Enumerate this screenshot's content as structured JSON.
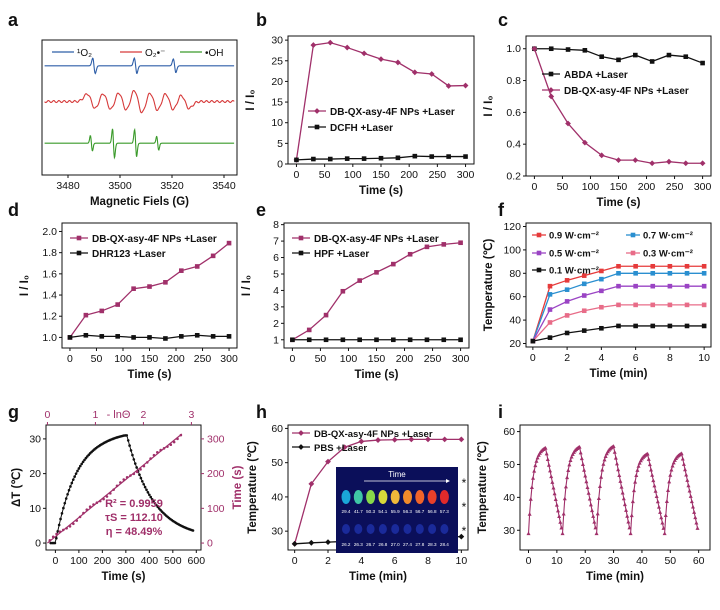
{
  "chart_data": [
    {
      "id": "a",
      "type": "line",
      "panel_label": "a",
      "xlabel": "Magnetic Fiels (G)",
      "ylabel": "",
      "xlim": [
        3470,
        3545
      ],
      "ylim": [
        -2.5,
        4.3
      ],
      "xticks": [
        3480,
        3500,
        3520,
        3540
      ],
      "yticks": [],
      "legend": [
        {
          "name": "¹O₂",
          "color": "#2f5fa8"
        },
        {
          "name": "O₂•⁻",
          "color": "#d63a3a"
        },
        {
          "name": "•OH",
          "color": "#3a9a2a"
        }
      ],
      "legend_position": "top",
      "series": [
        {
          "name": "¹O₂",
          "color": "#2f5fa8",
          "style": "epr",
          "offset": 3.0,
          "kind": "triplet"
        },
        {
          "name": "O₂•⁻",
          "color": "#d63a3a",
          "style": "epr",
          "offset": 1.2,
          "kind": "superoxide"
        },
        {
          "name": "•OH",
          "color": "#3a9a2a",
          "style": "epr",
          "offset": -0.9,
          "kind": "hydroxyl"
        }
      ]
    },
    {
      "id": "b",
      "type": "line",
      "panel_label": "b",
      "xlabel": "Time (s)",
      "ylabel": "I / I₀",
      "xlim": [
        -15,
        315
      ],
      "ylim": [
        0,
        31
      ],
      "xticks": [
        0,
        50,
        100,
        150,
        200,
        250,
        300
      ],
      "yticks": [
        0,
        5,
        10,
        15,
        20,
        25,
        30
      ],
      "legend_position": "center-right",
      "series": [
        {
          "name": "DB-QX-asy-4F NPs +Laser",
          "color": "#a0306a",
          "marker": "diamond",
          "x": [
            0,
            30,
            60,
            90,
            120,
            150,
            180,
            210,
            240,
            270,
            300
          ],
          "y": [
            1,
            28.8,
            29.4,
            28.2,
            26.8,
            25.4,
            24.6,
            22.2,
            21.8,
            18.9,
            19.0
          ]
        },
        {
          "name": "DCFH +Laser",
          "color": "#111111",
          "marker": "square",
          "x": [
            0,
            30,
            60,
            90,
            120,
            150,
            180,
            210,
            240,
            270,
            300
          ],
          "y": [
            1,
            1.2,
            1.2,
            1.3,
            1.3,
            1.4,
            1.5,
            1.9,
            1.8,
            1.8,
            1.8
          ]
        }
      ]
    },
    {
      "id": "c",
      "type": "line",
      "panel_label": "c",
      "xlabel": "Time (s)",
      "ylabel": "I / I₀",
      "xlim": [
        -15,
        315
      ],
      "ylim": [
        0.2,
        1.08
      ],
      "xticks": [
        0,
        50,
        100,
        150,
        200,
        250,
        300
      ],
      "yticks": [
        0.2,
        0.4,
        0.6,
        0.8,
        1.0
      ],
      "legend_position": "center-right",
      "series": [
        {
          "name": "ABDA +Laser",
          "color": "#111111",
          "marker": "square",
          "x": [
            0,
            30,
            60,
            90,
            120,
            150,
            180,
            210,
            240,
            270,
            300
          ],
          "y": [
            1.0,
            1.0,
            0.995,
            0.99,
            0.95,
            0.93,
            0.96,
            0.92,
            0.96,
            0.95,
            0.91
          ]
        },
        {
          "name": "DB-QX-asy-4F NPs +Laser",
          "color": "#a0306a",
          "marker": "diamond",
          "x": [
            0,
            30,
            60,
            90,
            120,
            150,
            180,
            210,
            240,
            270,
            300
          ],
          "y": [
            1.0,
            0.7,
            0.53,
            0.41,
            0.33,
            0.3,
            0.3,
            0.28,
            0.29,
            0.28,
            0.28
          ]
        }
      ]
    },
    {
      "id": "d",
      "type": "line",
      "panel_label": "d",
      "xlabel": "Time (s)",
      "ylabel": "I / I₀",
      "xlim": [
        -15,
        315
      ],
      "ylim": [
        0.9,
        2.08
      ],
      "xticks": [
        0,
        50,
        100,
        150,
        200,
        250,
        300
      ],
      "yticks": [
        1.0,
        1.2,
        1.4,
        1.6,
        1.8,
        2.0
      ],
      "legend_position": "top-left",
      "series": [
        {
          "name": "DB-QX-asy-4F NPs +Laser",
          "color": "#a0306a",
          "marker": "square",
          "x": [
            0,
            30,
            60,
            90,
            120,
            150,
            180,
            210,
            240,
            270,
            300
          ],
          "y": [
            1.0,
            1.21,
            1.25,
            1.31,
            1.46,
            1.48,
            1.52,
            1.63,
            1.67,
            1.77,
            1.89
          ]
        },
        {
          "name": "DHR123 +Laser",
          "color": "#111111",
          "marker": "square",
          "x": [
            0,
            30,
            60,
            90,
            120,
            150,
            180,
            210,
            240,
            270,
            300
          ],
          "y": [
            1.0,
            1.02,
            1.01,
            1.01,
            1.0,
            1.0,
            0.99,
            1.01,
            1.02,
            1.01,
            1.01
          ]
        }
      ]
    },
    {
      "id": "e",
      "type": "line",
      "panel_label": "e",
      "xlabel": "Time (s)",
      "ylabel": "I / I₀",
      "xlim": [
        -15,
        315
      ],
      "ylim": [
        0.5,
        8.1
      ],
      "xticks": [
        0,
        50,
        100,
        150,
        200,
        250,
        300
      ],
      "yticks": [
        1,
        2,
        3,
        4,
        5,
        6,
        7,
        8
      ],
      "legend_position": "top-left",
      "series": [
        {
          "name": "DB-QX-asy-4F NPs +Laser",
          "color": "#a0306a",
          "marker": "square",
          "x": [
            0,
            30,
            60,
            90,
            120,
            150,
            180,
            210,
            240,
            270,
            300
          ],
          "y": [
            1.0,
            1.6,
            2.5,
            3.95,
            4.6,
            5.1,
            5.6,
            6.2,
            6.65,
            6.8,
            6.9
          ]
        },
        {
          "name": "HPF +Laser",
          "color": "#111111",
          "marker": "square",
          "x": [
            0,
            30,
            60,
            90,
            120,
            150,
            180,
            210,
            240,
            270,
            300
          ],
          "y": [
            1.0,
            1.0,
            1.0,
            1.0,
            1.0,
            1.0,
            1.0,
            1.0,
            1.0,
            1.0,
            1.0
          ]
        }
      ]
    },
    {
      "id": "f",
      "type": "line",
      "panel_label": "f",
      "xlabel": "Time (min)",
      "ylabel": "Temperature (℃)",
      "xlim": [
        -0.4,
        10.4
      ],
      "ylim": [
        17,
        123
      ],
      "xticks": [
        0,
        2,
        4,
        6,
        8,
        10
      ],
      "yticks": [
        20,
        40,
        60,
        80,
        100,
        120
      ],
      "legend_position": "top",
      "series": [
        {
          "name": "0.9 W·cm⁻²",
          "color": "#e63b3b",
          "marker": "square",
          "x": [
            0,
            1,
            2,
            3,
            4,
            5,
            6,
            7,
            8,
            9,
            10
          ],
          "y": [
            22,
            69,
            74,
            78,
            82,
            86,
            86,
            86,
            86,
            86,
            86
          ]
        },
        {
          "name": "0.7 W·cm⁻²",
          "color": "#2a8fd0",
          "marker": "square",
          "x": [
            0,
            1,
            2,
            3,
            4,
            5,
            6,
            7,
            8,
            9,
            10
          ],
          "y": [
            22,
            62,
            66,
            71,
            75,
            80,
            80,
            80,
            80,
            80,
            80
          ]
        },
        {
          "name": "0.5 W·cm⁻²",
          "color": "#9a44c4",
          "marker": "square",
          "x": [
            0,
            1,
            2,
            3,
            4,
            5,
            6,
            7,
            8,
            9,
            10
          ],
          "y": [
            22,
            49,
            56,
            61,
            65,
            69,
            69,
            69,
            69,
            69,
            69
          ]
        },
        {
          "name": "0.3 W·cm⁻²",
          "color": "#e86c88",
          "marker": "square",
          "x": [
            0,
            1,
            2,
            3,
            4,
            5,
            6,
            7,
            8,
            9,
            10
          ],
          "y": [
            22,
            38,
            44,
            48,
            51,
            53,
            53,
            53,
            53,
            53,
            53
          ]
        },
        {
          "name": "0.1 W·cm⁻²",
          "color": "#111111",
          "marker": "square",
          "x": [
            0,
            1,
            2,
            3,
            4,
            5,
            6,
            7,
            8,
            9,
            10
          ],
          "y": [
            22,
            25,
            29,
            31,
            33,
            35,
            35,
            35,
            35,
            35,
            35
          ]
        }
      ]
    },
    {
      "id": "g",
      "type": "scatter",
      "panel_label": "g",
      "xlabel": "Time (s)",
      "ylabel": "ΔT (℃)",
      "x2label": "- lnΘ",
      "y2label": "Time (s)",
      "xlim": [
        -40,
        620
      ],
      "ylim": [
        -2,
        34
      ],
      "x2lim": [
        -0.03,
        3.2
      ],
      "y2lim": [
        -20,
        340
      ],
      "xticks": [
        0,
        100,
        200,
        300,
        400,
        500,
        600
      ],
      "yticks": [
        0,
        10,
        20,
        30
      ],
      "x2ticks": [
        0,
        1,
        2,
        3
      ],
      "y2ticks": [
        0,
        100,
        200,
        300
      ],
      "annotations": [
        "R² = 0.9959",
        "τS = 112.10",
        "η = 48.49%"
      ],
      "series": [
        {
          "name": "",
          "color": "#111111",
          "marker": "dot",
          "style": "heating-cooling",
          "heat": {
            "t_start": 0,
            "t_end": 300,
            "dT_max": 30.5,
            "tau": 90
          },
          "cool": {
            "t_start": 300,
            "t_end": 600,
            "tau": 112.1
          }
        },
        {
          "name": "",
          "color": "#a0306a",
          "marker": "dot",
          "style": "fit",
          "x2": [
            0.0,
            0.5,
            1.0,
            1.5,
            2.0,
            2.5,
            2.8
          ],
          "y2": [
            0,
            56,
            112,
            168,
            224,
            280,
            314
          ]
        }
      ]
    },
    {
      "id": "h",
      "type": "line",
      "panel_label": "h",
      "xlabel": "Time (min)",
      "ylabel": "Temperature (℃)",
      "xlim": [
        -0.4,
        10.4
      ],
      "ylim": [
        24.5,
        61
      ],
      "xticks": [
        0,
        2,
        4,
        6,
        8,
        10
      ],
      "yticks": [
        30,
        40,
        50,
        60
      ],
      "legend_position": "top-left",
      "inset": {
        "title": "Time",
        "top_labels": [
          "29.4",
          "41.7",
          "50.3",
          "54.1",
          "55.9",
          "56.3",
          "56.7",
          "56.8",
          "57.3"
        ],
        "bottom_labels": [
          "26.2",
          "26.3",
          "26.7",
          "26.8",
          "27.0",
          "27.4",
          "27.8",
          "28.3",
          "28.4"
        ],
        "significance": [
          "*",
          "*",
          "*"
        ]
      },
      "series": [
        {
          "name": "DB-QX-asy-4F NPs +Laser",
          "color": "#a0306a",
          "marker": "diamond",
          "x": [
            0,
            1,
            2,
            3,
            4,
            5,
            6,
            7,
            8,
            9,
            10
          ],
          "y": [
            26.3,
            43.8,
            50.3,
            54.5,
            56.2,
            56.6,
            56.7,
            56.8,
            56.8,
            56.8,
            56.8
          ]
        },
        {
          "name": "PBS +Laser",
          "color": "#111111",
          "marker": "diamond",
          "x": [
            0,
            1,
            2,
            3,
            4,
            5,
            6,
            7,
            8,
            9,
            10
          ],
          "y": [
            26.3,
            26.6,
            26.8,
            27.0,
            27.2,
            27.5,
            27.7,
            27.9,
            28.1,
            28.3,
            28.4
          ]
        }
      ]
    },
    {
      "id": "i",
      "type": "line",
      "panel_label": "i",
      "xlabel": "Time (min)",
      "ylabel": "Temperature (℃)",
      "xlim": [
        -3,
        64
      ],
      "ylim": [
        24,
        62
      ],
      "xticks": [
        0,
        10,
        20,
        30,
        40,
        50,
        60
      ],
      "yticks": [
        30,
        40,
        50,
        60
      ],
      "series": [
        {
          "name": "",
          "color": "#a0306a",
          "marker": "triangle",
          "style": "cycles",
          "cycles": 5,
          "period": 12,
          "heat_min": 6,
          "base": 29,
          "peaks": [
            55,
            55.3,
            55.5,
            53.2,
            53.3
          ]
        }
      ]
    }
  ]
}
